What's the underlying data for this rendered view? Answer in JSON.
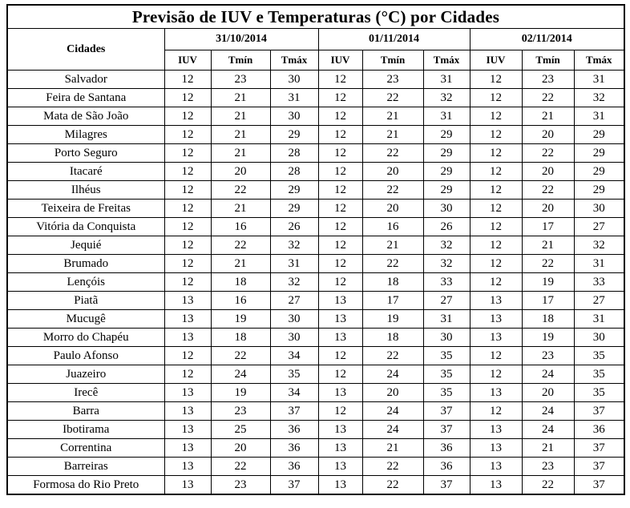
{
  "title": "Previsão de IUV e Temperaturas (°C) por Cidades",
  "table": {
    "city_header": "Cidades",
    "dates": [
      "31/10/2014",
      "01/11/2014",
      "02/11/2014"
    ],
    "sub_headers": [
      "IUV",
      "Tmín",
      "Tmáx"
    ],
    "rows": [
      {
        "city": "Salvador",
        "values": [
          12,
          23,
          30,
          12,
          23,
          31,
          12,
          23,
          31
        ]
      },
      {
        "city": "Feira de Santana",
        "values": [
          12,
          21,
          31,
          12,
          22,
          32,
          12,
          22,
          32
        ]
      },
      {
        "city": "Mata de São João",
        "values": [
          12,
          21,
          30,
          12,
          21,
          31,
          12,
          21,
          31
        ]
      },
      {
        "city": "Milagres",
        "values": [
          12,
          21,
          29,
          12,
          21,
          29,
          12,
          20,
          29
        ]
      },
      {
        "city": "Porto Seguro",
        "values": [
          12,
          21,
          28,
          12,
          22,
          29,
          12,
          22,
          29
        ]
      },
      {
        "city": "Itacaré",
        "values": [
          12,
          20,
          28,
          12,
          20,
          29,
          12,
          20,
          29
        ]
      },
      {
        "city": "Ilhéus",
        "values": [
          12,
          22,
          29,
          12,
          22,
          29,
          12,
          22,
          29
        ]
      },
      {
        "city": "Teixeira de Freitas",
        "values": [
          12,
          21,
          29,
          12,
          20,
          30,
          12,
          20,
          30
        ]
      },
      {
        "city": "Vitória da Conquista",
        "values": [
          12,
          16,
          26,
          12,
          16,
          26,
          12,
          17,
          27
        ]
      },
      {
        "city": "Jequié",
        "values": [
          12,
          22,
          32,
          12,
          21,
          32,
          12,
          21,
          32
        ]
      },
      {
        "city": "Brumado",
        "values": [
          12,
          21,
          31,
          12,
          22,
          32,
          12,
          22,
          31
        ]
      },
      {
        "city": "Lençóis",
        "values": [
          12,
          18,
          32,
          12,
          18,
          33,
          12,
          19,
          33
        ]
      },
      {
        "city": "Piatã",
        "values": [
          13,
          16,
          27,
          13,
          17,
          27,
          13,
          17,
          27
        ]
      },
      {
        "city": "Mucugê",
        "values": [
          13,
          19,
          30,
          13,
          19,
          31,
          13,
          18,
          31
        ]
      },
      {
        "city": "Morro do Chapéu",
        "values": [
          13,
          18,
          30,
          13,
          18,
          30,
          13,
          19,
          30
        ]
      },
      {
        "city": "Paulo Afonso",
        "values": [
          12,
          22,
          34,
          12,
          22,
          35,
          12,
          23,
          35
        ]
      },
      {
        "city": "Juazeiro",
        "values": [
          12,
          24,
          35,
          12,
          24,
          35,
          12,
          24,
          35
        ]
      },
      {
        "city": "Irecê",
        "values": [
          13,
          19,
          34,
          13,
          20,
          35,
          13,
          20,
          35
        ]
      },
      {
        "city": "Barra",
        "values": [
          13,
          23,
          37,
          12,
          24,
          37,
          12,
          24,
          37
        ]
      },
      {
        "city": "Ibotirama",
        "values": [
          13,
          25,
          36,
          13,
          24,
          37,
          13,
          24,
          36
        ]
      },
      {
        "city": "Correntina",
        "values": [
          13,
          20,
          36,
          13,
          21,
          36,
          13,
          21,
          37
        ]
      },
      {
        "city": "Barreiras",
        "values": [
          13,
          22,
          36,
          13,
          22,
          36,
          13,
          23,
          37
        ]
      },
      {
        "city": "Formosa do Rio Preto",
        "values": [
          13,
          23,
          37,
          13,
          22,
          37,
          13,
          22,
          37
        ]
      }
    ]
  }
}
